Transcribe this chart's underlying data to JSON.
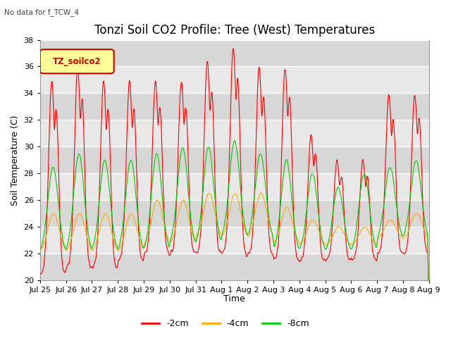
{
  "title": "Tonzi Soil CO2 Profile: Tree (West) Temperatures",
  "subtitle": "No data for f_TCW_4",
  "ylabel": "Soil Temperature (C)",
  "xlabel": "Time",
  "ylim": [
    20,
    38
  ],
  "yticks": [
    20,
    22,
    24,
    26,
    28,
    30,
    32,
    34,
    36,
    38
  ],
  "xtick_labels": [
    "Jul 25",
    "Jul 26",
    "Jul 27",
    "Jul 28",
    "Jul 29",
    "Jul 30",
    "Jul 31",
    "Aug 1",
    "Aug 2",
    "Aug 3",
    "Aug 4",
    "Aug 5",
    "Aug 6",
    "Aug 7",
    "Aug 8",
    "Aug 9"
  ],
  "legend_label": "TZ_soilco2",
  "series_labels": [
    "-2cm",
    "-4cm",
    "-8cm"
  ],
  "series_colors": [
    "#ff0000",
    "#ffaa00",
    "#00cc00"
  ],
  "background_color": "#ffffff",
  "plot_bg_color": "#e8e8e8",
  "grid_color": "#ffffff",
  "title_fontsize": 12,
  "axis_fontsize": 9,
  "tick_fontsize": 8,
  "figsize": [
    6.4,
    4.8
  ],
  "dpi": 100
}
